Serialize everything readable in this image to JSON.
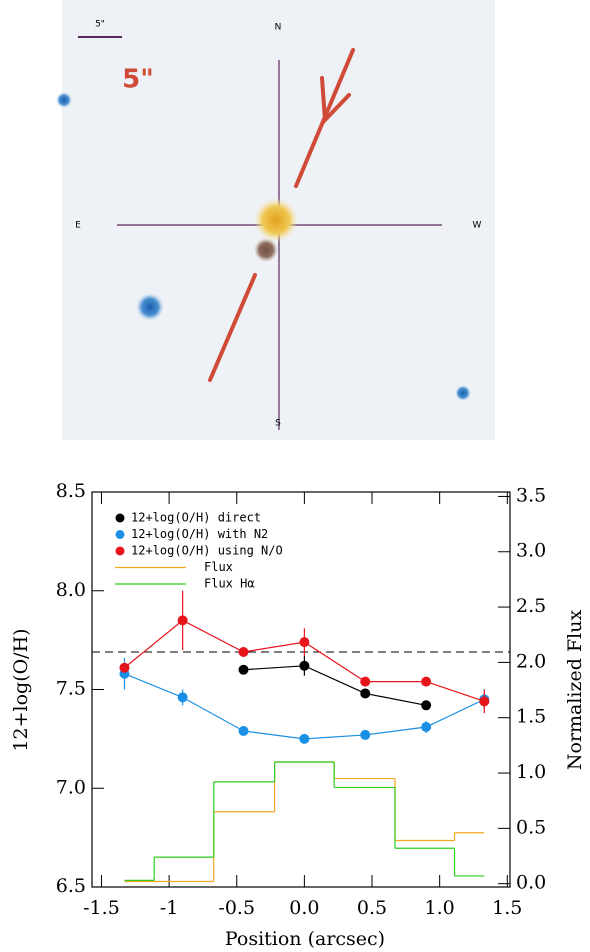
{
  "image": {
    "scale_label": "5\"",
    "scale_annotation": "5\"",
    "compass": {
      "north": "N",
      "south": "S",
      "east": "E",
      "west": "W"
    }
  },
  "chart_data": {
    "type": "line",
    "xlabel": "Position (arcsec)",
    "ylabel": "12+log(O/H)",
    "y2label": "Normalized Flux",
    "xlim": [
      -1.57,
      1.52
    ],
    "ylim": [
      6.5,
      8.5
    ],
    "y2lim": [
      -0.03,
      3.54
    ],
    "xticks": [
      -1.5,
      -1,
      -0.5,
      {
        "value": 0,
        "label": "0.0"
      },
      0.5,
      {
        "value": 1,
        "label": "1.0"
      },
      1.5
    ],
    "yticks": [
      6.5,
      {
        "value": 7,
        "label": "7.0"
      },
      7.5,
      {
        "value": 8,
        "label": "8.0"
      },
      8.5
    ],
    "y2ticks": [
      {
        "value": 0,
        "label": "0.0"
      },
      0.5,
      {
        "value": 1,
        "label": "1.0"
      },
      1.5,
      {
        "value": 2,
        "label": "2.0"
      },
      2.5,
      {
        "value": 3,
        "label": "3.0"
      },
      3.5
    ],
    "legend": "upper left",
    "reference_line": {
      "value": 7.69,
      "style": "dashed"
    },
    "series": [
      {
        "name": "12+log(O/H) direct",
        "type": "line",
        "color": "#000000",
        "x": [
          -0.45,
          0,
          0.45,
          0.9
        ],
        "values": [
          7.6,
          7.62,
          7.48,
          7.42
        ],
        "errors": [
          null,
          0.05,
          null,
          null
        ]
      },
      {
        "name": "12+log(O/H) with N2",
        "type": "line",
        "color": "#1a8fe3",
        "x": [
          -1.33,
          -0.9,
          -0.45,
          0,
          0.45,
          0.9,
          1.33
        ],
        "values": [
          7.58,
          7.46,
          7.29,
          7.25,
          7.27,
          7.31,
          7.45
        ],
        "errors": [
          0.08,
          0.04,
          null,
          null,
          null,
          0.03,
          0.05
        ]
      },
      {
        "name": "12+log(O/H) using N/O",
        "type": "line",
        "color": "#e8141c",
        "x": [
          -1.33,
          -0.9,
          -0.45,
          0,
          0.45,
          0.9,
          1.33
        ],
        "values": [
          7.61,
          7.85,
          7.69,
          7.74,
          7.54,
          7.54,
          7.44
        ],
        "errors": [
          null,
          0.15,
          null,
          0.07,
          null,
          null,
          0.06
        ]
      },
      {
        "name": "Flux",
        "type": "step",
        "axis": "y2",
        "color": "#f5a623",
        "bins": [
          -1.33,
          -0.67,
          -0.22,
          0.22,
          0.67,
          1.11,
          1.33
        ],
        "values": [
          0.02,
          0.65,
          1.1,
          0.95,
          0.39,
          0.46
        ]
      },
      {
        "name": "Flux Hα",
        "type": "step",
        "axis": "y2",
        "color": "#2ecc1f",
        "bins": [
          -1.33,
          -1.11,
          -0.67,
          -0.22,
          0.22,
          0.67,
          1.11,
          1.33
        ],
        "values": [
          0.03,
          0.24,
          0.92,
          1.1,
          0.87,
          0.32,
          0.07
        ]
      }
    ]
  }
}
